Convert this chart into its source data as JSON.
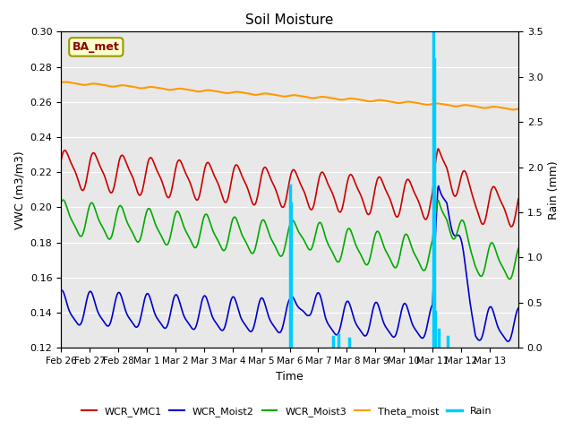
{
  "title": "Soil Moisture",
  "xlabel": "Time",
  "ylabel_left": "VWC (m3/m3)",
  "ylabel_right": "Rain (mm)",
  "ylim_left": [
    0.12,
    0.3
  ],
  "ylim_right": [
    0.0,
    3.5
  ],
  "background_color": "#ffffff",
  "plot_bg_color": "#e8e8e8",
  "annotation_text": "BA_met",
  "annotation_color": "#8B0000",
  "annotation_bg": "#ffffcc",
  "annotation_border": "#999900",
  "xtick_labels": [
    "Feb 26",
    "Feb 27",
    "Feb 28",
    "Mar 1",
    "Mar 2",
    "Mar 3",
    "Mar 4",
    "Mar 5",
    "Mar 6",
    "Mar 7",
    "Mar 8",
    "Mar 9",
    "Mar 10",
    "Mar 11",
    "Mar 12",
    "Mar 13"
  ],
  "legend_labels": [
    "WCR_VMC1",
    "WCR_Moist2",
    "WCR_Moist3",
    "Theta_moist",
    "Rain"
  ],
  "legend_colors": [
    "#cc0000",
    "#0000cc",
    "#00aa00",
    "#ff9900",
    "#00ccff"
  ]
}
